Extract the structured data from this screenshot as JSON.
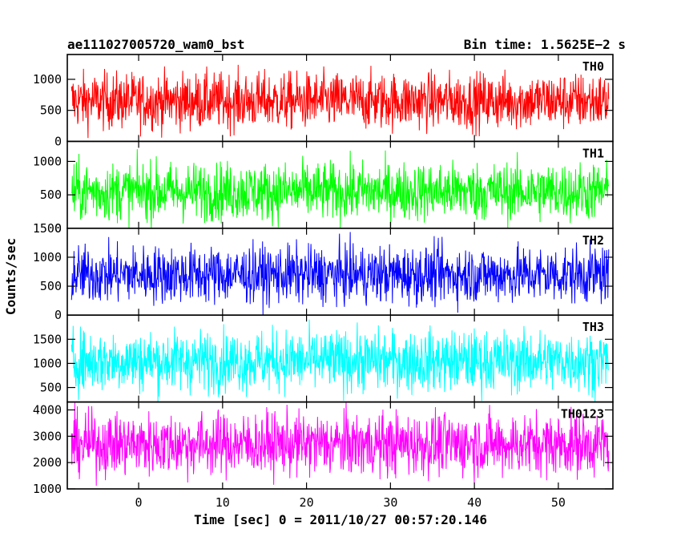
{
  "chart_data": {
    "type": "line",
    "title_left": "ae111027005720_wam0_bst",
    "title_right": "Bin time: 1.5625E−2 s",
    "xlabel": "Time [sec] 0 = 2011/10/27 00:57:20.146",
    "ylabel": "Counts/sec",
    "xlim": [
      -8.5,
      56.5
    ],
    "data_range": [
      -8,
      56
    ],
    "x_ticks": [
      "0",
      "10",
      "20",
      "30",
      "40",
      "50"
    ],
    "x_tick_values": [
      0,
      10,
      20,
      30,
      40,
      50
    ],
    "grid": false,
    "panels": [
      {
        "name": "TH0",
        "color": "#ff0000",
        "ylim": [
          0,
          1400
        ],
        "mean": 650,
        "spread": 230,
        "yticks": [
          "0",
          "500",
          "1000"
        ],
        "ytick_values": [
          0,
          500,
          1000
        ]
      },
      {
        "name": "TH1",
        "color": "#00ff00",
        "ylim": [
          0,
          1300
        ],
        "mean": 550,
        "spread": 220,
        "yticks": [
          "0",
          "500",
          "1000"
        ],
        "ytick_values": [
          0,
          500,
          1000
        ]
      },
      {
        "name": "TH2",
        "color": "#0000ff",
        "ylim": [
          0,
          1500
        ],
        "mean": 700,
        "spread": 250,
        "yticks": [
          "0",
          "500",
          "1000",
          "1500"
        ],
        "ytick_values": [
          0,
          500,
          1000,
          1500
        ]
      },
      {
        "name": "TH3",
        "color": "#00ffff",
        "ylim": [
          200,
          2000
        ],
        "mean": 1050,
        "spread": 320,
        "yticks": [
          "500",
          "1000",
          "1500"
        ],
        "ytick_values": [
          500,
          1000,
          1500
        ]
      },
      {
        "name": "TH0123",
        "color": "#ff00ff",
        "ylim": [
          1000,
          4300
        ],
        "mean": 2700,
        "spread": 600,
        "yticks": [
          "1000",
          "2000",
          "3000",
          "4000"
        ],
        "ytick_values": [
          1000,
          2000,
          3000,
          4000
        ]
      }
    ]
  }
}
